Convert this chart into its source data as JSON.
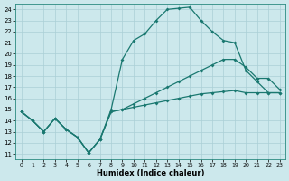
{
  "xlabel": "Humidex (Indice chaleur)",
  "xlim": [
    -0.5,
    23.5
  ],
  "ylim": [
    10.5,
    24.5
  ],
  "xticks": [
    0,
    1,
    2,
    3,
    4,
    5,
    6,
    7,
    8,
    9,
    10,
    11,
    12,
    13,
    14,
    15,
    16,
    17,
    18,
    19,
    20,
    21,
    22,
    23
  ],
  "yticks": [
    11,
    12,
    13,
    14,
    15,
    16,
    17,
    18,
    19,
    20,
    21,
    22,
    23,
    24
  ],
  "bg_color": "#cce8ec",
  "line_color": "#1a7870",
  "grid_color": "#aacfd6",
  "line1": {
    "x": [
      0,
      1,
      2,
      3,
      4,
      5,
      6,
      7,
      8,
      9,
      10,
      11,
      12,
      13,
      14,
      15,
      16,
      17,
      18,
      19,
      20,
      21,
      22,
      23
    ],
    "y": [
      14.8,
      14.0,
      13.0,
      14.2,
      13.2,
      12.5,
      11.1,
      12.3,
      15.0,
      19.5,
      21.2,
      21.8,
      23.0,
      24.0,
      24.1,
      24.2,
      23.0,
      22.0,
      21.2,
      21.0,
      18.5,
      17.5,
      16.5,
      16.5
    ]
  },
  "line2": {
    "x": [
      0,
      1,
      2,
      3,
      4,
      5,
      6,
      7,
      8,
      9,
      10,
      11,
      12,
      13,
      14,
      15,
      16,
      17,
      18,
      19,
      20,
      21,
      22,
      23
    ],
    "y": [
      14.8,
      14.0,
      13.0,
      14.2,
      13.2,
      12.5,
      11.1,
      12.3,
      14.8,
      15.0,
      15.5,
      16.0,
      16.5,
      17.0,
      17.5,
      18.0,
      18.5,
      19.0,
      19.5,
      19.5,
      18.8,
      17.8,
      17.8,
      16.8
    ]
  },
  "line3": {
    "x": [
      0,
      1,
      2,
      3,
      4,
      5,
      6,
      7,
      8,
      9,
      10,
      11,
      12,
      13,
      14,
      15,
      16,
      17,
      18,
      19,
      20,
      21,
      22,
      23
    ],
    "y": [
      14.8,
      14.0,
      13.0,
      14.2,
      13.2,
      12.5,
      11.1,
      12.3,
      14.8,
      15.0,
      15.2,
      15.4,
      15.6,
      15.8,
      16.0,
      16.2,
      16.4,
      16.5,
      16.6,
      16.7,
      16.5,
      16.5,
      16.5,
      16.5
    ]
  }
}
